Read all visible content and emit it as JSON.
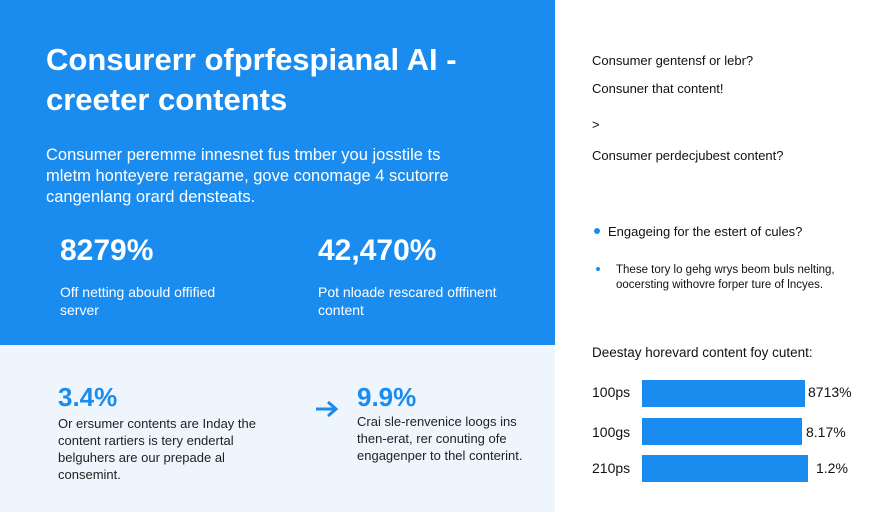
{
  "hero": {
    "title": "Consurerr ofprfespianal AI - creeter contents",
    "intro": "Consumer peremme innesnet fus tmber you josstile ts mletm honteyere reragame, gove conomage 4 scutorre cangenlang orard densteats.",
    "stats": [
      {
        "value": "8279%",
        "text": "Off netting abould offified server"
      },
      {
        "value": "42,470%",
        "text": "Pot nloade rescared offfinent content"
      }
    ]
  },
  "lower": {
    "stats": [
      {
        "value": "3.4%",
        "text": "Or ersumer contents are Inday the content rartiers is tery endertal belguhers are our prepade al consemint."
      },
      {
        "value": "9.9%",
        "text": "Crai sle-renvenice loogs ins then-erat, rer conuting ofe engagenper to thel conterint."
      }
    ]
  },
  "sidebar": {
    "items": [
      "Consumer gentensf or lebr?",
      "Consuner that content!",
      ">",
      "Consumer perdecjubest content?"
    ],
    "bullets": [
      "Engageing for the estert of cules?",
      "These tory lo gehg wrys beom buls nelting, oocersting withovre forper ture of lncyes."
    ],
    "bars_title": "Deestay horevard content foy cutent:",
    "bars": [
      {
        "label": "100ps",
        "value": "8713%"
      },
      {
        "label": "100gs",
        "value": "8.17%"
      },
      {
        "label": "210ps",
        "value": "1.2%"
      }
    ]
  }
}
